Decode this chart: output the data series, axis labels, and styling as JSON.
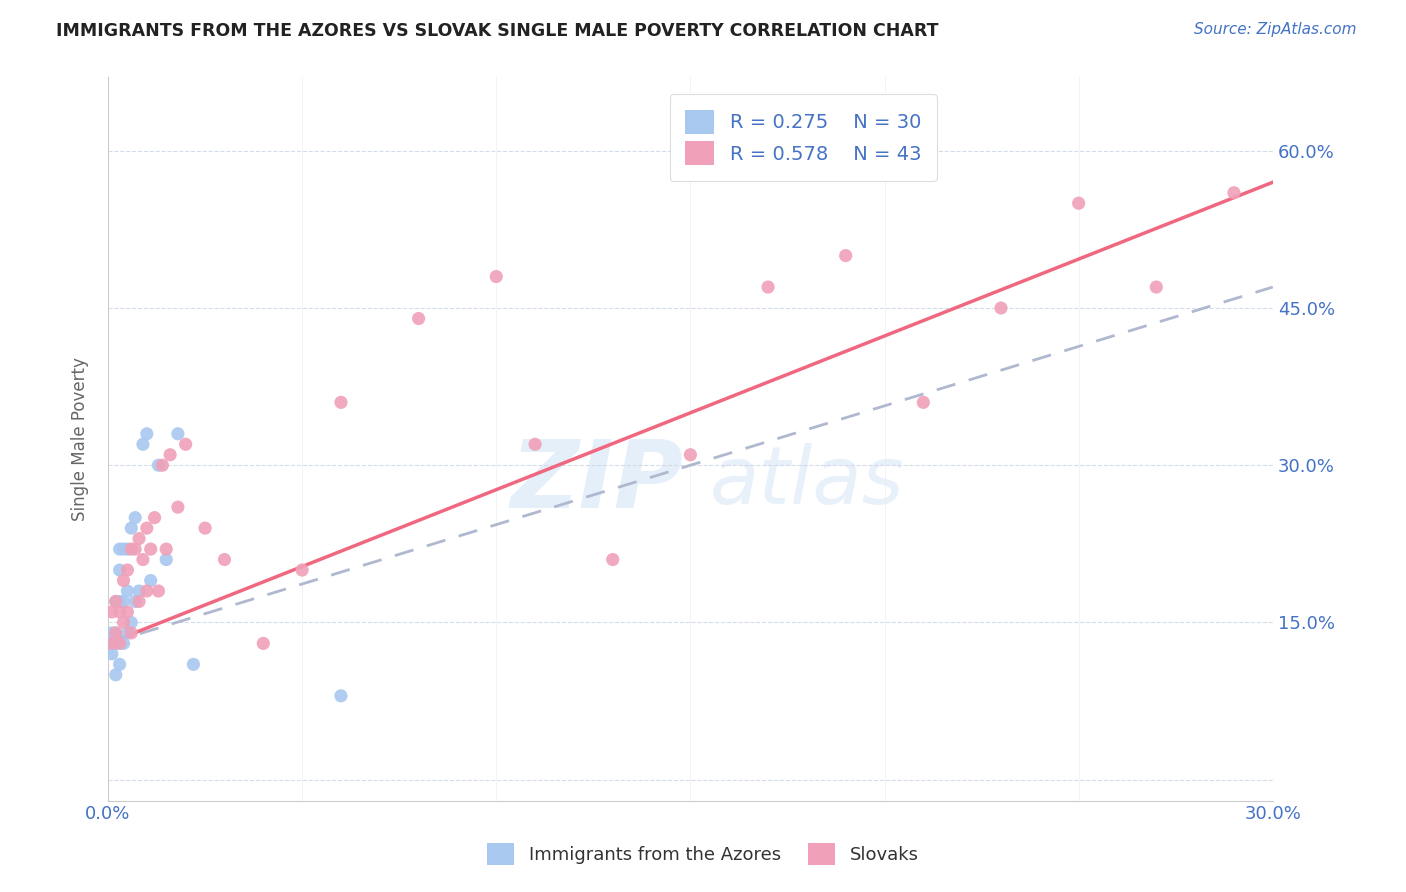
{
  "title": "IMMIGRANTS FROM THE AZORES VS SLOVAK SINGLE MALE POVERTY CORRELATION CHART",
  "source": "Source: ZipAtlas.com",
  "ylabel": "Single Male Poverty",
  "yticks": [
    0.0,
    0.15,
    0.3,
    0.45,
    0.6
  ],
  "ytick_labels": [
    "",
    "15.0%",
    "30.0%",
    "45.0%",
    "60.0%"
  ],
  "xlim": [
    0.0,
    0.3
  ],
  "ylim": [
    -0.02,
    0.67
  ],
  "legend_r1": "R = 0.275",
  "legend_n1": "N = 30",
  "legend_r2": "R = 0.578",
  "legend_n2": "N = 43",
  "color_azores": "#a8c8f0",
  "color_slovak": "#f0a0b8",
  "color_line_azores": "#b0b8d0",
  "color_line_slovak": "#f06880",
  "watermark_zip": "ZIP",
  "watermark_atlas": "atlas",
  "azores_x": [
    0.001,
    0.001,
    0.001,
    0.002,
    0.002,
    0.002,
    0.002,
    0.003,
    0.003,
    0.003,
    0.003,
    0.004,
    0.004,
    0.004,
    0.005,
    0.005,
    0.005,
    0.006,
    0.006,
    0.007,
    0.007,
    0.008,
    0.009,
    0.01,
    0.011,
    0.013,
    0.015,
    0.018,
    0.022,
    0.06
  ],
  "azores_y": [
    0.12,
    0.13,
    0.14,
    0.1,
    0.13,
    0.14,
    0.17,
    0.11,
    0.17,
    0.2,
    0.22,
    0.13,
    0.17,
    0.22,
    0.14,
    0.18,
    0.22,
    0.15,
    0.24,
    0.17,
    0.25,
    0.18,
    0.32,
    0.33,
    0.19,
    0.3,
    0.21,
    0.33,
    0.11,
    0.08
  ],
  "slovak_x": [
    0.001,
    0.001,
    0.002,
    0.002,
    0.003,
    0.003,
    0.004,
    0.004,
    0.005,
    0.005,
    0.006,
    0.006,
    0.007,
    0.008,
    0.008,
    0.009,
    0.01,
    0.01,
    0.011,
    0.012,
    0.013,
    0.014,
    0.015,
    0.016,
    0.018,
    0.02,
    0.025,
    0.03,
    0.04,
    0.05,
    0.06,
    0.08,
    0.1,
    0.11,
    0.13,
    0.15,
    0.17,
    0.19,
    0.21,
    0.23,
    0.25,
    0.27,
    0.29
  ],
  "slovak_y": [
    0.13,
    0.16,
    0.14,
    0.17,
    0.13,
    0.16,
    0.15,
    0.19,
    0.16,
    0.2,
    0.14,
    0.22,
    0.22,
    0.17,
    0.23,
    0.21,
    0.18,
    0.24,
    0.22,
    0.25,
    0.18,
    0.3,
    0.22,
    0.31,
    0.26,
    0.32,
    0.24,
    0.21,
    0.13,
    0.2,
    0.36,
    0.44,
    0.48,
    0.32,
    0.21,
    0.31,
    0.47,
    0.5,
    0.36,
    0.45,
    0.55,
    0.47,
    0.56
  ],
  "azores_line_x": [
    0.0,
    0.3
  ],
  "azores_line_y": [
    0.13,
    0.47
  ],
  "slovak_line_x": [
    0.0,
    0.3
  ],
  "slovak_line_y": [
    0.13,
    0.57
  ]
}
